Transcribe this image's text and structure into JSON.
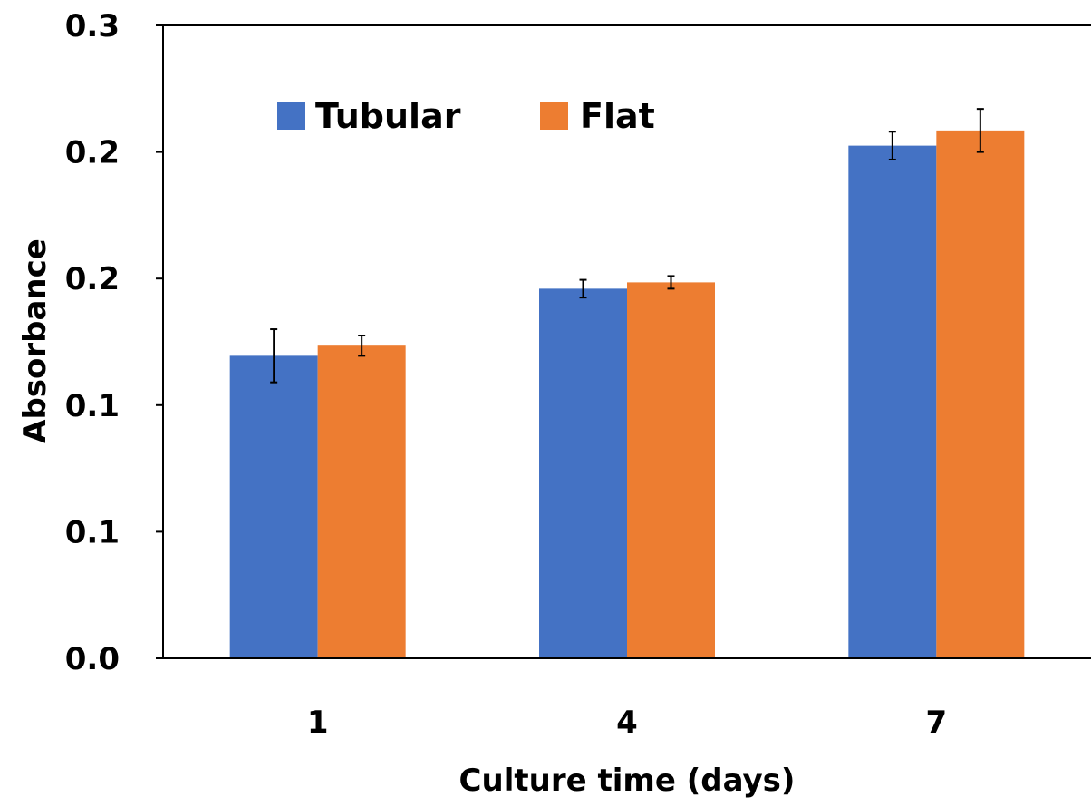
{
  "chart_data": {
    "type": "bar",
    "title": "",
    "xlabel": "Culture time (days)",
    "ylabel": "Absorbance",
    "categories": [
      "1",
      "4",
      "7"
    ],
    "ylim": [
      0,
      0.25
    ],
    "y_tick_values": [
      0,
      0.05,
      0.1,
      0.15,
      0.2,
      0.25
    ],
    "y_tick_labels": [
      "0.0",
      "0.1",
      "0.1",
      "0.2",
      "0.2",
      "0.3"
    ],
    "legend_position": "top-left",
    "grid": false,
    "series": [
      {
        "name": "Tubular",
        "color": "#4472c4",
        "values": [
          0.1195,
          0.146,
          0.2025
        ],
        "errors": [
          0.0105,
          0.0035,
          0.0055
        ]
      },
      {
        "name": "Flat",
        "color": "#ed7d31",
        "values": [
          0.1235,
          0.1485,
          0.2085
        ],
        "errors": [
          0.004,
          0.0025,
          0.0085
        ]
      }
    ]
  }
}
